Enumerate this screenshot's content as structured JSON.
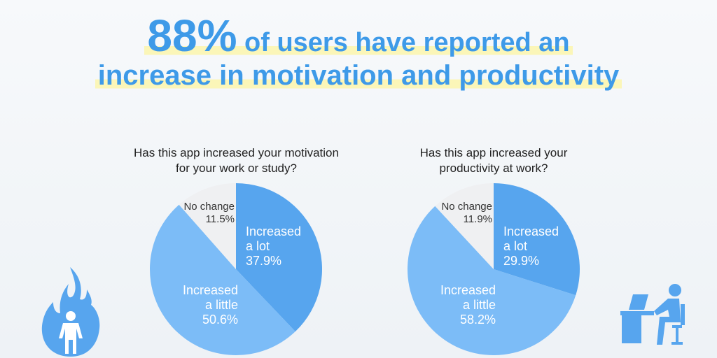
{
  "headline": {
    "highlight": "88%",
    "line1_rest": " of users have reported an",
    "line2": "increase in motivation and productivity"
  },
  "colors": {
    "accent": "#3e9ae8",
    "a_lot": "#57a5ee",
    "a_little": "#7cbcf7",
    "no_change": "#eff0f2"
  },
  "chart_data": [
    {
      "type": "pie",
      "title": "Has this app increased your motivation for your work or study?",
      "title_lines": [
        "Has this app increased your motivation",
        "for your work or study?"
      ],
      "slices": [
        {
          "label_lines": [
            "Increased",
            "a lot"
          ],
          "value": 37.9,
          "value_label": "37.9%"
        },
        {
          "label_lines": [
            "Increased",
            "a little"
          ],
          "value": 50.6,
          "value_label": "50.6%"
        },
        {
          "label_lines": [
            "No change"
          ],
          "value": 11.5,
          "value_label": "11.5%"
        }
      ]
    },
    {
      "type": "pie",
      "title": "Has this app increased your productivity at work?",
      "title_lines": [
        "Has this app increased your",
        "productivity at work?"
      ],
      "slices": [
        {
          "label_lines": [
            "Increased",
            "a lot"
          ],
          "value": 29.9,
          "value_label": "29.9%"
        },
        {
          "label_lines": [
            "Increased",
            "a little"
          ],
          "value": 58.2,
          "value_label": "58.2%"
        },
        {
          "label_lines": [
            "No change"
          ],
          "value": 11.9,
          "value_label": "11.9%"
        }
      ]
    }
  ],
  "icons": [
    "fire-person-icon",
    "person-at-desk-icon"
  ]
}
